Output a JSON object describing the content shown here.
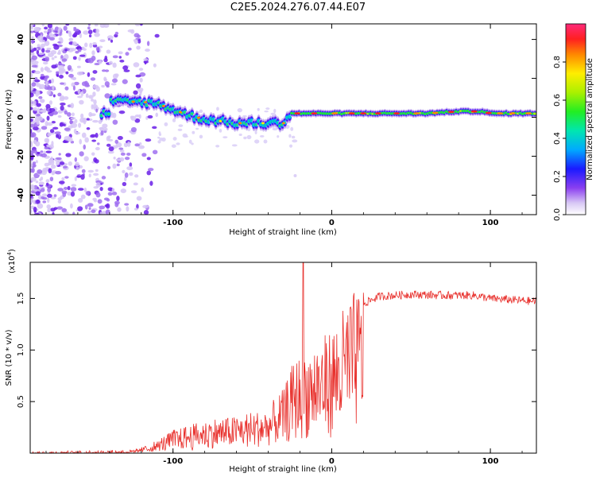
{
  "title": "C2E5.2024.276.07.44.E07",
  "chart_data": [
    {
      "type": "heatmap",
      "name": "spectrogram",
      "xlabel": "Height of straight line (km)",
      "ylabel": "Frequency (Hz)",
      "xlim": [
        -190,
        129
      ],
      "ylim": [
        -50,
        48
      ],
      "xticks": [
        -100,
        0,
        100
      ],
      "yticks": [
        -40,
        -20,
        0,
        20,
        40
      ],
      "colorbar": {
        "label": "Normalized spectral amplitude",
        "range": [
          0.0,
          1.0
        ],
        "ticks": [
          0.0,
          0.2,
          0.4,
          0.6,
          0.8
        ]
      },
      "ridge": [
        {
          "x": -140,
          "f": 8
        },
        {
          "x": -120,
          "f": 8
        },
        {
          "x": -110,
          "f": 7
        },
        {
          "x": -100,
          "f": 4
        },
        {
          "x": -90,
          "f": 1
        },
        {
          "x": -80,
          "f": -1
        },
        {
          "x": -70,
          "f": -2
        },
        {
          "x": -60,
          "f": -3
        },
        {
          "x": -50,
          "f": -3
        },
        {
          "x": -40,
          "f": -3
        },
        {
          "x": -30,
          "f": -3
        },
        {
          "x": -28,
          "f": 0
        },
        {
          "x": -25,
          "f": 2
        },
        {
          "x": -15,
          "f": 2
        },
        {
          "x": 0,
          "f": 2
        },
        {
          "x": 20,
          "f": 2
        },
        {
          "x": 40,
          "f": 2
        },
        {
          "x": 60,
          "f": 2
        },
        {
          "x": 80,
          "f": 3
        },
        {
          "x": 95,
          "f": 3
        },
        {
          "x": 100,
          "f": 2
        },
        {
          "x": 129,
          "f": 2
        }
      ]
    },
    {
      "type": "line",
      "name": "snr",
      "xlabel": "Height of straight line (km)",
      "ylabel": "SNR (10 * v/v)",
      "yunit": "(x10",
      "yunit_exp": "4",
      "xlim": [
        -190,
        129
      ],
      "ylim": [
        0,
        1.85
      ],
      "xticks": [
        -100,
        0,
        100
      ],
      "yticks": [
        0.5,
        1.0,
        1.5
      ],
      "color": "#e8302c",
      "envelope": [
        {
          "x": -190,
          "y": 0.0
        },
        {
          "x": -125,
          "y": 0.02
        },
        {
          "x": -110,
          "y": 0.1
        },
        {
          "x": -100,
          "y": 0.2
        },
        {
          "x": -80,
          "y": 0.28
        },
        {
          "x": -60,
          "y": 0.32
        },
        {
          "x": -40,
          "y": 0.38
        },
        {
          "x": -30,
          "y": 0.55
        },
        {
          "x": -25,
          "y": 0.75
        },
        {
          "x": -20,
          "y": 0.85
        },
        {
          "x": -15,
          "y": 0.9
        },
        {
          "x": -10,
          "y": 0.95
        },
        {
          "x": 0,
          "y": 1.05
        },
        {
          "x": 10,
          "y": 1.3
        },
        {
          "x": 20,
          "y": 1.45
        },
        {
          "x": 30,
          "y": 1.52
        },
        {
          "x": 50,
          "y": 1.54
        },
        {
          "x": 70,
          "y": 1.53
        },
        {
          "x": 90,
          "y": 1.53
        },
        {
          "x": 100,
          "y": 1.5
        },
        {
          "x": 129,
          "y": 1.47
        }
      ],
      "peak": {
        "x": -18,
        "y": 1.85
      }
    }
  ]
}
